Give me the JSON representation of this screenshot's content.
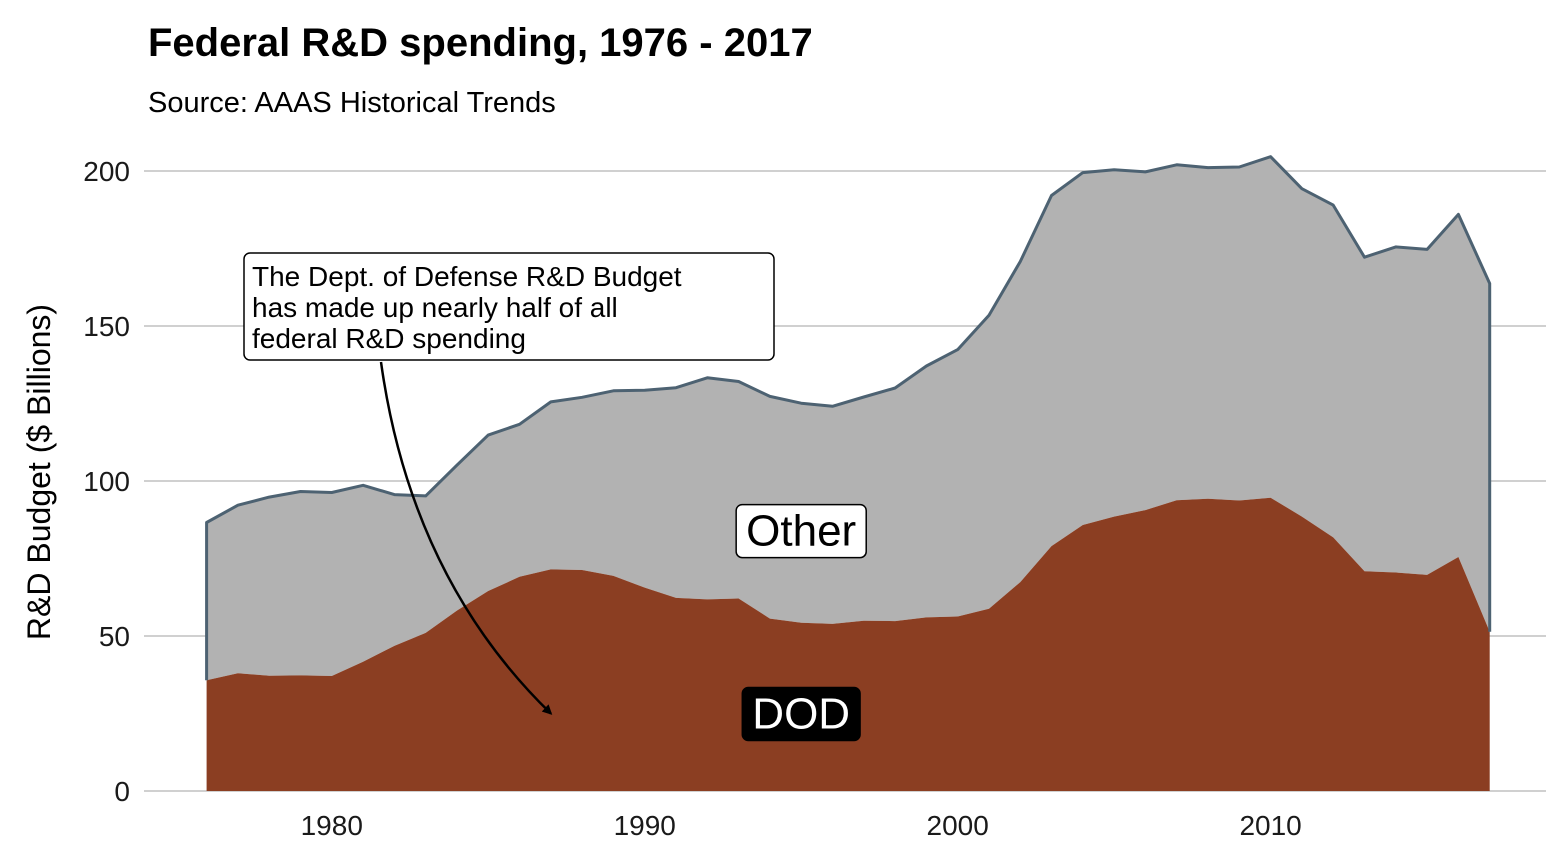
{
  "chart_data": {
    "type": "area",
    "stacked": true,
    "title": "Federal R&D spending, 1976 - 2017",
    "subtitle": "Source: AAAS Historical Trends",
    "xlabel": "",
    "ylabel": "R&D Budget ($ Billions)",
    "xlim": [
      1974,
      2018.8
    ],
    "ylim": [
      0,
      210
    ],
    "x_ticks": [
      1980,
      1990,
      2000,
      2010
    ],
    "y_ticks": [
      0,
      50,
      100,
      150,
      200
    ],
    "grid": "horizontal",
    "x": [
      1976,
      1977,
      1978,
      1979,
      1980,
      1981,
      1982,
      1983,
      1984,
      1985,
      1986,
      1987,
      1988,
      1989,
      1990,
      1991,
      1992,
      1993,
      1994,
      1995,
      1996,
      1997,
      1998,
      1999,
      2000,
      2001,
      2002,
      2003,
      2004,
      2005,
      2006,
      2007,
      2008,
      2009,
      2010,
      2011,
      2012,
      2013,
      2014,
      2015,
      2016,
      2017
    ],
    "series": [
      {
        "name": "DOD",
        "color": "#8B3E22",
        "values": [
          35.7,
          38.0,
          37.2,
          37.3,
          37.1,
          41.7,
          46.8,
          51.0,
          58.2,
          64.5,
          69.1,
          71.5,
          71.3,
          69.4,
          65.6,
          62.3,
          61.8,
          62.1,
          55.6,
          54.3,
          53.9,
          54.9,
          54.8,
          56.0,
          56.3,
          58.8,
          67.4,
          79.0,
          85.8,
          88.5,
          90.6,
          93.8,
          94.3,
          93.7,
          94.6,
          88.5,
          81.8,
          70.9,
          70.5,
          69.7,
          75.5,
          51.4
        ]
      },
      {
        "name": "Other",
        "color": "#b2b2b2",
        "values": [
          50.9,
          54.2,
          57.6,
          59.3,
          59.2,
          56.9,
          48.8,
          44.2,
          46.9,
          50.3,
          49.2,
          54.0,
          55.7,
          59.7,
          63.7,
          67.8,
          71.5,
          70.0,
          71.7,
          70.8,
          70.2,
          72.2,
          75.2,
          81.1,
          86.1,
          94.7,
          103.4,
          113.1,
          113.7,
          111.9,
          109.1,
          108.2,
          106.8,
          107.6,
          110.0,
          105.8,
          107.2,
          101.3,
          105.0,
          105.0,
          110.5,
          112.3
        ]
      }
    ],
    "total_line_color": "#4d6272",
    "annotation": {
      "lines": [
        "The Dept. of Defense R&D Budget",
        "has made up nearly half of all",
        "federal R&D spending"
      ],
      "arrow_target": [
        1987.0,
        25
      ]
    },
    "series_labels": [
      {
        "text": "Other",
        "x": 1995,
        "y": 84,
        "fill": "#ffffff",
        "text_color": "#000000"
      },
      {
        "text": "DOD",
        "x": 1995,
        "y": 25,
        "fill": "#000000",
        "text_color": "#ffffff"
      }
    ]
  }
}
